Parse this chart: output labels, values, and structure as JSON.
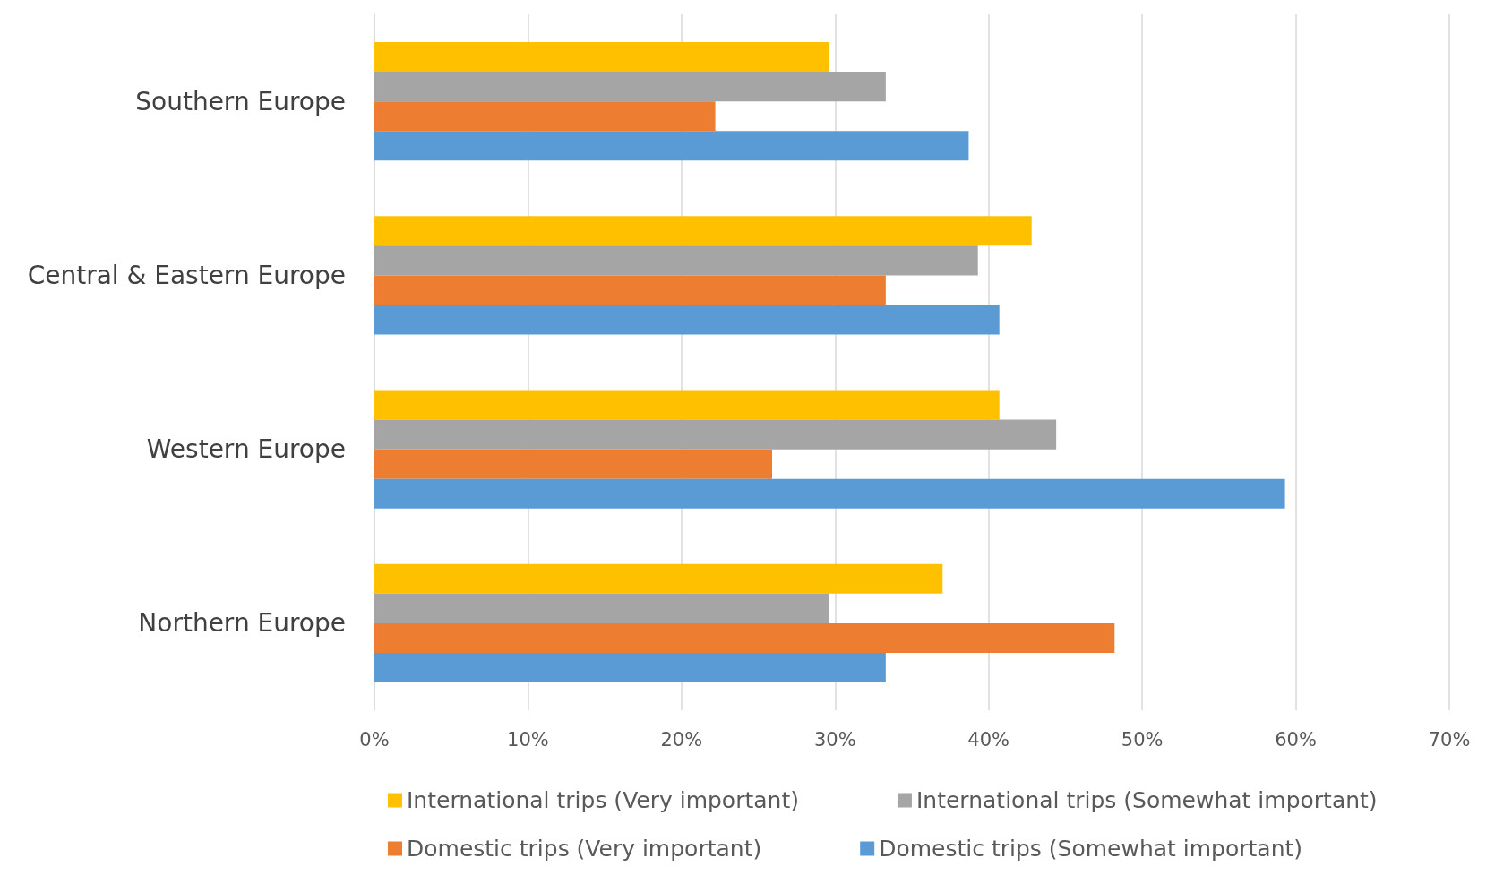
{
  "chart_data": {
    "type": "bar",
    "orientation": "horizontal",
    "categories": [
      "Southern Europe",
      "Central & Eastern Europe",
      "Western Europe",
      "Northern Europe"
    ],
    "series": [
      {
        "name": "International trips (Very important)",
        "color": "#ffc000",
        "values": [
          29.6,
          42.8,
          40.7,
          37.0
        ]
      },
      {
        "name": "International trips (Somewhat important)",
        "color": "#a5a5a5",
        "values": [
          33.3,
          39.3,
          44.4,
          29.6
        ]
      },
      {
        "name": "Domestic trips (Very important)",
        "color": "#ed7d31",
        "values": [
          22.2,
          33.3,
          25.9,
          48.2
        ]
      },
      {
        "name": "Domestic trips (Somewhat important)",
        "color": "#5b9bd5",
        "values": [
          38.7,
          40.7,
          59.3,
          33.3
        ]
      }
    ],
    "xlim": [
      0,
      70
    ],
    "xticks": [
      {
        "value": 0,
        "label": "0%"
      },
      {
        "value": 10,
        "label": "10%"
      },
      {
        "value": 20,
        "label": "20%"
      },
      {
        "value": 30,
        "label": "30%"
      },
      {
        "value": 40,
        "label": "40%"
      },
      {
        "value": 50,
        "label": "50%"
      },
      {
        "value": 60,
        "label": "60%"
      },
      {
        "value": 70,
        "label": "70%"
      }
    ],
    "grid": "x",
    "legend": "bottom"
  }
}
